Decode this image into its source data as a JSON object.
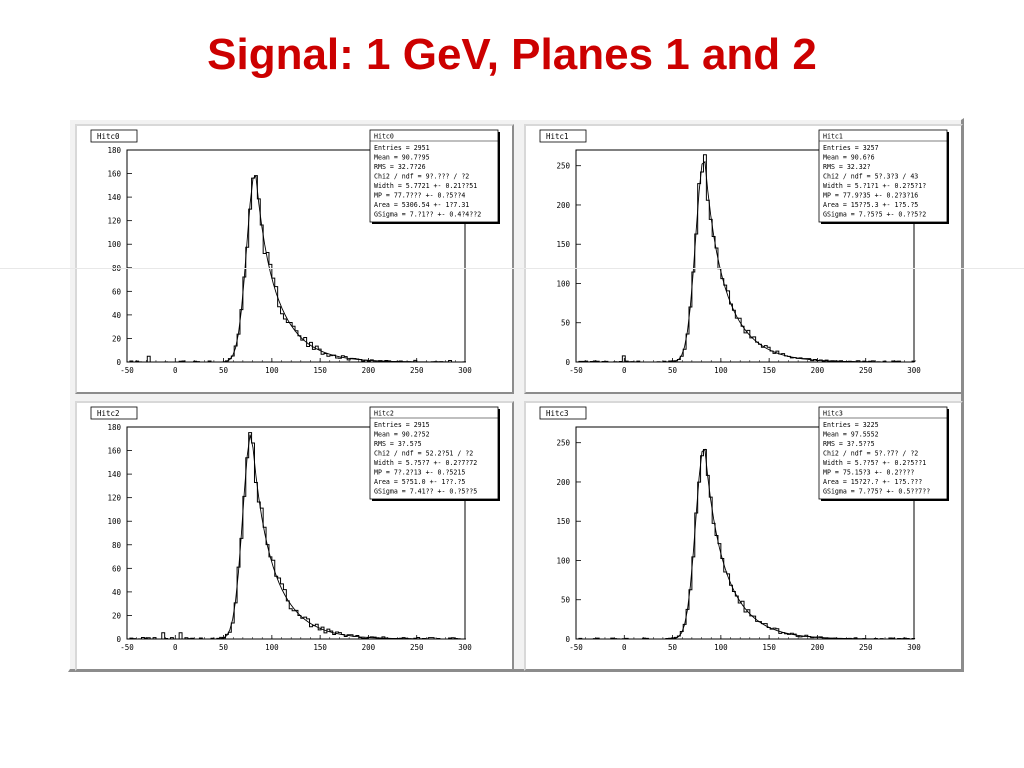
{
  "slide": {
    "title": "Signal: 1 GeV, Planes 1 and 2"
  },
  "chart_data": [
    {
      "type": "histogram",
      "name": "Hitc0",
      "x_ticks": [
        "-50",
        "0",
        "50",
        "100",
        "150",
        "200",
        "250",
        "300"
      ],
      "xlim": [
        -50,
        300
      ],
      "y_ticks": [
        "0",
        "20",
        "40",
        "60",
        "80",
        "100",
        "120",
        "140",
        "160",
        "180"
      ],
      "ylim": [
        0,
        180
      ],
      "peak_x": 83,
      "peak_y": 162,
      "stats": {
        "name": "Hitc0",
        "lines": [
          "Entries = 2951",
          "Mean = 90.7?95",
          "RMS = 32.7?26",
          "Chi2 / ndf = 9?.??? / ?2",
          "Width = 5.7721 +- 0.21??51",
          "MP = 77.7??? +- 0.?5??4",
          "Area = 5306.54 +- 1?7.31",
          "GSigma = 7.?1?? +- 0.4?4??2"
        ]
      }
    },
    {
      "type": "histogram",
      "name": "Hitc1",
      "x_ticks": [
        "-50",
        "0",
        "50",
        "100",
        "150",
        "200",
        "250",
        "300"
      ],
      "xlim": [
        -50,
        300
      ],
      "y_ticks": [
        "0",
        "50",
        "100",
        "150",
        "200",
        "250"
      ],
      "ylim": [
        0,
        270
      ],
      "peak_x": 83,
      "peak_y": 262,
      "stats": {
        "name": "Hitc1",
        "lines": [
          "Entries = 3257",
          "Mean = 90.6?6",
          "RMS = 32.32?",
          "Chi2 / ndf = 5?.3?3 / 43",
          "Width = 5.?1?1 +- 0.2?5?1?",
          "MP = 77.9?35 +- 0.2?3?16",
          "Area = 15??5.3 +- 1?5.?5",
          "GSigma = 7.?5?5 +- 0.??5?2"
        ]
      }
    },
    {
      "type": "histogram",
      "name": "Hitc2",
      "x_ticks": [
        "-50",
        "0",
        "50",
        "100",
        "150",
        "200",
        "250",
        "300"
      ],
      "xlim": [
        -50,
        300
      ],
      "y_ticks": [
        "0",
        "20",
        "40",
        "60",
        "80",
        "100",
        "120",
        "140",
        "160",
        "180"
      ],
      "ylim": [
        0,
        180
      ],
      "peak_x": 79,
      "peak_y": 176,
      "stats": {
        "name": "Hitc2",
        "lines": [
          "Entries = 2915",
          "Mean = 90.2?52",
          "RMS = 3?.5?5",
          "Chi2 / ndf = 52.2?51 / ?2",
          "Width = 5.?5?7 +- 0.2?7?72",
          "MP = 7?.2?13 +- 0.?5215",
          "Area = 5?51.0 +- 1??.?5",
          "GSigma = 7.41?? +- 0.?5??5"
        ]
      }
    },
    {
      "type": "histogram",
      "name": "Hitc3",
      "x_ticks": [
        "-50",
        "0",
        "50",
        "100",
        "150",
        "200",
        "250",
        "300"
      ],
      "xlim": [
        -50,
        300
      ],
      "y_ticks": [
        "0",
        "50",
        "100",
        "150",
        "200",
        "250"
      ],
      "ylim": [
        0,
        270
      ],
      "peak_x": 83,
      "peak_y": 248,
      "stats": {
        "name": "Hitc3",
        "lines": [
          "Entries = 3225",
          "Mean = 97.5552",
          "RMS = 3?.5??5",
          "Chi2 / ndf = 5?.?7? / ?2",
          "Width = 5.??5? +- 0.2?5??1",
          "MP = 75.15?3 +- 0.2????",
          "Area = 15?2?.? +- 1?5.???",
          "GSigma = 7.?75? +- 0.5??7??"
        ]
      }
    }
  ]
}
